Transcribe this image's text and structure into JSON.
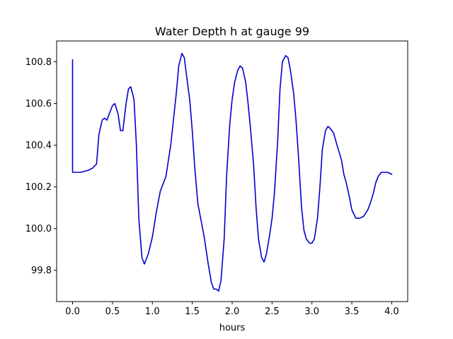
{
  "chart_data": {
    "type": "line",
    "title": "Water Depth h at gauge 99",
    "xlabel": "hours",
    "ylabel": "",
    "xlim": [
      -0.2,
      4.2
    ],
    "ylim": [
      99.65,
      100.9
    ],
    "xticks": [
      0.0,
      0.5,
      1.0,
      1.5,
      2.0,
      2.5,
      3.0,
      3.5,
      4.0
    ],
    "xtick_labels": [
      "0.0",
      "0.5",
      "1.0",
      "1.5",
      "2.0",
      "2.5",
      "3.0",
      "3.5",
      "4.0"
    ],
    "yticks": [
      99.8,
      100.0,
      100.2,
      100.4,
      100.6,
      100.8
    ],
    "ytick_labels": [
      "99.8",
      "100.0",
      "100.2",
      "100.4",
      "100.6",
      "100.8"
    ],
    "grid": false,
    "series": [
      {
        "color": "#0000cc",
        "x": [
          0.0,
          0.0,
          0.0,
          0.1,
          0.2,
          0.25,
          0.3,
          0.33,
          0.37,
          0.4,
          0.43,
          0.47,
          0.5,
          0.53,
          0.57,
          0.6,
          0.63,
          0.67,
          0.7,
          0.73,
          0.77,
          0.8,
          0.83,
          0.87,
          0.9,
          0.95,
          1.0,
          1.05,
          1.1,
          1.17,
          1.23,
          1.3,
          1.33,
          1.37,
          1.4,
          1.43,
          1.47,
          1.5,
          1.53,
          1.57,
          1.6,
          1.65,
          1.7,
          1.74,
          1.77,
          1.8,
          1.83,
          1.86,
          1.9,
          1.93,
          1.97,
          2.0,
          2.03,
          2.07,
          2.1,
          2.13,
          2.17,
          2.2,
          2.23,
          2.27,
          2.3,
          2.33,
          2.37,
          2.4,
          2.43,
          2.47,
          2.5,
          2.53,
          2.57,
          2.6,
          2.63,
          2.67,
          2.7,
          2.73,
          2.77,
          2.8,
          2.83,
          2.87,
          2.9,
          2.93,
          2.97,
          3.0,
          3.03,
          3.07,
          3.1,
          3.13,
          3.17,
          3.2,
          3.23,
          3.27,
          3.3,
          3.33,
          3.37,
          3.4,
          3.43,
          3.47,
          3.5,
          3.55,
          3.6,
          3.65,
          3.7,
          3.73,
          3.77,
          3.8,
          3.83,
          3.87,
          3.9,
          3.95,
          4.0
        ],
        "y": [
          100.81,
          100.27,
          100.27,
          100.27,
          100.28,
          100.29,
          100.31,
          100.45,
          100.52,
          100.53,
          100.52,
          100.56,
          100.59,
          100.6,
          100.55,
          100.47,
          100.47,
          100.6,
          100.67,
          100.68,
          100.62,
          100.4,
          100.05,
          99.86,
          99.83,
          99.88,
          99.96,
          100.08,
          100.18,
          100.25,
          100.4,
          100.65,
          100.78,
          100.84,
          100.82,
          100.73,
          100.61,
          100.47,
          100.3,
          100.12,
          100.06,
          99.96,
          99.83,
          99.74,
          99.71,
          99.71,
          99.7,
          99.75,
          99.95,
          100.25,
          100.5,
          100.62,
          100.7,
          100.76,
          100.78,
          100.77,
          100.7,
          100.6,
          100.48,
          100.3,
          100.1,
          99.95,
          99.86,
          99.84,
          99.88,
          99.97,
          100.05,
          100.17,
          100.42,
          100.67,
          100.8,
          100.83,
          100.82,
          100.76,
          100.65,
          100.52,
          100.35,
          100.1,
          99.99,
          99.95,
          99.93,
          99.93,
          99.95,
          100.05,
          100.2,
          100.38,
          100.47,
          100.49,
          100.48,
          100.46,
          100.42,
          100.38,
          100.33,
          100.26,
          100.22,
          100.15,
          100.09,
          100.05,
          100.05,
          100.06,
          100.09,
          100.12,
          100.17,
          100.22,
          100.25,
          100.27,
          100.27,
          100.27,
          100.26
        ]
      }
    ]
  }
}
